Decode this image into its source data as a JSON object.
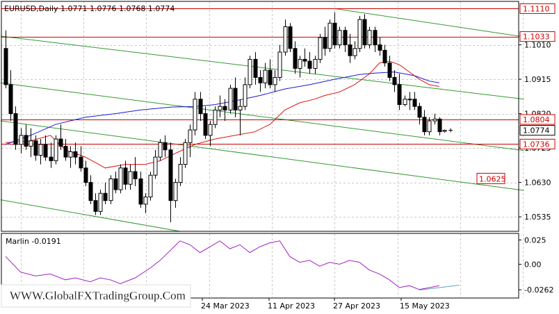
{
  "symbol_header": "EURUSD,Daily  1.0771 1.0776 1.0768 1.0774",
  "indicator_header": "Marlin -0.0191",
  "watermark": "WWW.GlobalFXTradingGroup.Com",
  "colors": {
    "bg": "#ffffff",
    "grid": "#c8c8c8",
    "frame": "#000000",
    "resistance": "#cc0000",
    "channel": "#339933",
    "ma_blue": "#1a1acc",
    "ma_red": "#dd1111",
    "marlin": "#a020c0",
    "marlin_trend": "#5aa0c8"
  },
  "chart_data": [
    {
      "type": "candlestick",
      "symbol": "EURUSD",
      "timeframe": "Daily",
      "ylim": [
        1.0495,
        1.113
      ],
      "price_ticks": [
        "1.1110",
        "1.1033",
        "1.1010",
        "1.0915",
        "1.0820",
        "1.0804",
        "1.0774",
        "1.0736",
        "1.0630",
        "1.0535"
      ],
      "date_labels": [
        "24 Mar 2023",
        "11 Apr 2023",
        "27 Apr 2023",
        "15 May 2023"
      ],
      "levels": [
        {
          "price": 1.111,
          "label": "1.1110"
        },
        {
          "price": 1.1033,
          "label": "1.1033"
        },
        {
          "price": 1.0804,
          "label": "1.0804"
        },
        {
          "price": 1.0736,
          "label": "1.0736"
        }
      ],
      "target_label": "1.0625",
      "current_price": "1.0774",
      "candles": [
        [
          1.1,
          1.105,
          1.089,
          1.09
        ],
        [
          1.09,
          1.094,
          1.08,
          1.082
        ],
        [
          1.082,
          1.084,
          1.072,
          1.0735
        ],
        [
          1.0735,
          1.078,
          1.071,
          1.076
        ],
        [
          1.076,
          1.079,
          1.072,
          1.073
        ],
        [
          1.073,
          1.078,
          1.07,
          1.0745
        ],
        [
          1.0745,
          1.076,
          1.069,
          1.0705
        ],
        [
          1.0705,
          1.075,
          1.068,
          1.0735
        ],
        [
          1.0735,
          1.076,
          1.069,
          1.07
        ],
        [
          1.07,
          1.074,
          1.067,
          1.069
        ],
        [
          1.069,
          1.076,
          1.068,
          1.075
        ],
        [
          1.075,
          1.079,
          1.072,
          1.073
        ],
        [
          1.073,
          1.075,
          1.069,
          1.07
        ],
        [
          1.07,
          1.073,
          1.067,
          1.0715
        ],
        [
          1.0715,
          1.074,
          1.068,
          1.07
        ],
        [
          1.07,
          1.073,
          1.066,
          1.067
        ],
        [
          1.067,
          1.069,
          1.062,
          1.063
        ],
        [
          1.063,
          1.065,
          1.057,
          1.058
        ],
        [
          1.058,
          1.06,
          1.054,
          1.055
        ],
        [
          1.055,
          1.061,
          1.054,
          1.06
        ],
        [
          1.06,
          1.063,
          1.057,
          1.058
        ],
        [
          1.058,
          1.065,
          1.057,
          1.064
        ],
        [
          1.064,
          1.066,
          1.06,
          1.061
        ],
        [
          1.061,
          1.068,
          1.06,
          1.067
        ],
        [
          1.067,
          1.069,
          1.061,
          1.0625
        ],
        [
          1.0625,
          1.068,
          1.061,
          1.066
        ],
        [
          1.066,
          1.07,
          1.062,
          1.064
        ],
        [
          1.064,
          1.066,
          1.056,
          1.057
        ],
        [
          1.057,
          1.06,
          1.0545,
          1.059
        ],
        [
          1.059,
          1.066,
          1.058,
          1.065
        ],
        [
          1.065,
          1.072,
          1.064,
          1.07
        ],
        [
          1.07,
          1.075,
          1.069,
          1.074
        ],
        [
          1.074,
          1.076,
          1.07,
          1.072
        ],
        [
          1.072,
          1.074,
          1.052,
          1.058
        ],
        [
          1.058,
          1.064,
          1.056,
          1.063
        ],
        [
          1.063,
          1.07,
          1.062,
          1.068
        ],
        [
          1.068,
          1.075,
          1.067,
          1.074
        ],
        [
          1.074,
          1.079,
          1.07,
          1.0775
        ],
        [
          1.0775,
          1.088,
          1.076,
          1.086
        ],
        [
          1.086,
          1.088,
          1.08,
          1.082
        ],
        [
          1.082,
          1.084,
          1.075,
          1.076
        ],
        [
          1.076,
          1.08,
          1.073,
          1.079
        ],
        [
          1.079,
          1.084,
          1.078,
          1.083
        ],
        [
          1.083,
          1.087,
          1.081,
          1.084
        ],
        [
          1.084,
          1.086,
          1.08,
          1.083
        ],
        [
          1.083,
          1.09,
          1.082,
          1.089
        ],
        [
          1.089,
          1.092,
          1.081,
          1.083
        ],
        [
          1.083,
          1.086,
          1.076,
          1.084
        ],
        [
          1.084,
          1.092,
          1.083,
          1.09
        ],
        [
          1.09,
          1.098,
          1.089,
          1.097
        ],
        [
          1.097,
          1.099,
          1.09,
          1.092
        ],
        [
          1.092,
          1.094,
          1.088,
          1.0905
        ],
        [
          1.0905,
          1.096,
          1.089,
          1.094
        ],
        [
          1.094,
          1.097,
          1.089,
          1.09
        ],
        [
          1.09,
          1.094,
          1.088,
          1.092
        ],
        [
          1.092,
          1.101,
          1.091,
          1.099
        ],
        [
          1.099,
          1.108,
          1.098,
          1.106
        ],
        [
          1.106,
          1.107,
          1.099,
          1.1
        ],
        [
          1.1,
          1.102,
          1.093,
          1.0945
        ],
        [
          1.0945,
          1.098,
          1.092,
          1.097
        ],
        [
          1.097,
          1.1,
          1.095,
          1.0965
        ],
        [
          1.0965,
          1.099,
          1.093,
          1.0945
        ],
        [
          1.0945,
          1.098,
          1.093,
          1.097
        ],
        [
          1.097,
          1.104,
          1.096,
          1.103
        ],
        [
          1.103,
          1.106,
          1.098,
          1.1
        ],
        [
          1.1,
          1.108,
          1.099,
          1.107
        ],
        [
          1.107,
          1.11,
          1.1,
          1.101
        ],
        [
          1.101,
          1.106,
          1.1,
          1.105
        ],
        [
          1.105,
          1.106,
          1.099,
          1.101
        ],
        [
          1.101,
          1.104,
          1.096,
          1.098
        ],
        [
          1.098,
          1.102,
          1.097,
          1.1
        ],
        [
          1.1,
          1.109,
          1.099,
          1.108
        ],
        [
          1.108,
          1.1095,
          1.1,
          1.101
        ],
        [
          1.101,
          1.106,
          1.1,
          1.105
        ],
        [
          1.105,
          1.106,
          1.099,
          1.101
        ],
        [
          1.101,
          1.103,
          1.098,
          1.0995
        ],
        [
          1.0995,
          1.101,
          1.095,
          1.096
        ],
        [
          1.096,
          1.098,
          1.091,
          1.092
        ],
        [
          1.092,
          1.094,
          1.088,
          1.09
        ],
        [
          1.09,
          1.093,
          1.083,
          1.0845
        ],
        [
          1.0845,
          1.087,
          1.084,
          1.086
        ],
        [
          1.086,
          1.088,
          1.083,
          1.086
        ],
        [
          1.086,
          1.088,
          1.083,
          1.084
        ],
        [
          1.084,
          1.085,
          1.079,
          1.081
        ],
        [
          1.081,
          1.083,
          1.076,
          1.077
        ],
        [
          1.077,
          1.081,
          1.076,
          1.08
        ],
        [
          1.08,
          1.082,
          1.079,
          1.0805
        ],
        [
          1.0805,
          1.081,
          1.076,
          1.077
        ],
        [
          1.0771,
          1.0776,
          1.0768,
          1.0774
        ]
      ],
      "ma_blue": [
        [
          0,
          1.0735
        ],
        [
          5,
          1.076
        ],
        [
          10,
          1.079
        ],
        [
          16,
          1.081
        ],
        [
          22,
          1.082
        ],
        [
          27,
          1.083
        ],
        [
          33,
          1.0838
        ],
        [
          38,
          1.084
        ],
        [
          42,
          1.0845
        ],
        [
          47,
          1.0858
        ],
        [
          51,
          1.087
        ],
        [
          56,
          1.0888
        ],
        [
          61,
          1.09
        ],
        [
          66,
          1.0915
        ],
        [
          71,
          1.0928
        ],
        [
          74,
          1.0932
        ],
        [
          78,
          1.0935
        ],
        [
          82,
          1.0925
        ],
        [
          85,
          1.091
        ],
        [
          87,
          1.0905
        ]
      ],
      "ma_red": [
        [
          0,
          1.074
        ],
        [
          5,
          1.0745
        ],
        [
          9,
          1.076
        ],
        [
          12,
          1.072
        ],
        [
          16,
          1.07
        ],
        [
          20,
          1.067
        ],
        [
          24,
          1.068
        ],
        [
          28,
          1.068
        ],
        [
          31,
          1.069
        ],
        [
          34,
          1.071
        ],
        [
          38,
          1.0735
        ],
        [
          42,
          1.075
        ],
        [
          46,
          1.076
        ],
        [
          50,
          1.077
        ],
        [
          53,
          1.079
        ],
        [
          56,
          1.083
        ],
        [
          59,
          1.085
        ],
        [
          62,
          1.086
        ],
        [
          64,
          1.087
        ],
        [
          67,
          1.088
        ],
        [
          70,
          1.09
        ],
        [
          73,
          1.093
        ],
        [
          75,
          1.096
        ],
        [
          77,
          1.0965
        ],
        [
          79,
          1.0955
        ],
        [
          81,
          1.0935
        ],
        [
          83,
          1.0915
        ],
        [
          85,
          1.09
        ],
        [
          87,
          1.0895
        ]
      ],
      "marlin": {
        "label": "Marlin",
        "value": -0.0191,
        "ticks": [
          "0.025",
          "0.00",
          "-0.0262"
        ],
        "ylim": [
          -0.034,
          0.031
        ],
        "points": [
          [
            0,
            0.008
          ],
          [
            3,
            -0.008
          ],
          [
            6,
            -0.012
          ],
          [
            9,
            -0.01
          ],
          [
            12,
            -0.016
          ],
          [
            14,
            -0.014
          ],
          [
            17,
            -0.018
          ],
          [
            19,
            -0.014
          ],
          [
            21,
            -0.016
          ],
          [
            23,
            -0.02
          ],
          [
            26,
            -0.014
          ],
          [
            29,
            -0.004
          ],
          [
            31,
            0.004
          ],
          [
            33,
            0.014
          ],
          [
            35,
            0.024
          ],
          [
            37,
            0.02
          ],
          [
            39,
            0.012
          ],
          [
            41,
            0.018
          ],
          [
            43,
            0.024
          ],
          [
            45,
            0.016
          ],
          [
            47,
            0.02
          ],
          [
            49,
            0.012
          ],
          [
            51,
            0.018
          ],
          [
            53,
            0.022
          ],
          [
            55,
            0.024
          ],
          [
            57,
            0.008
          ],
          [
            59,
            0.002
          ],
          [
            61,
            0.004
          ],
          [
            63,
            -0.002
          ],
          [
            65,
            0.002
          ],
          [
            67,
            0.0
          ],
          [
            69,
            0.004
          ],
          [
            71,
            0.002
          ],
          [
            73,
            -0.006
          ],
          [
            75,
            -0.01
          ],
          [
            77,
            -0.016
          ],
          [
            79,
            -0.024
          ],
          [
            81,
            -0.022
          ],
          [
            83,
            -0.026
          ],
          [
            85,
            -0.024
          ],
          [
            87,
            -0.022
          ]
        ],
        "trend": [
          [
            83,
            -0.0265
          ],
          [
            91,
            -0.0215
          ]
        ]
      }
    }
  ]
}
